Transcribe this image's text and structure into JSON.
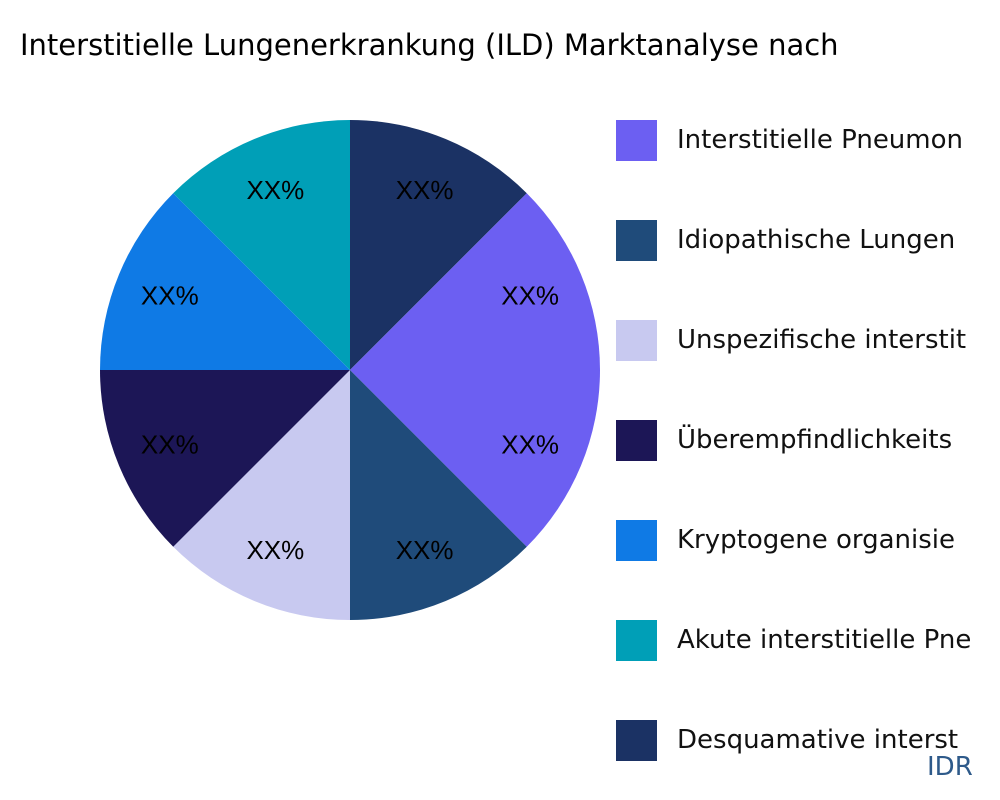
{
  "chart_data": {
    "type": "pie",
    "title": "Interstitielle Lungenerkrankung (ILD) Marktanalyse nach",
    "direction": "clockwise",
    "start": "top",
    "legend_position": "right",
    "slices": [
      {
        "label": "Desquamative interst",
        "value": 12.5,
        "color": "#1b3264",
        "text": "XX%"
      },
      {
        "label": "",
        "value": 12.5,
        "color": "#6c5ff2",
        "text": "XX%"
      },
      {
        "label": "Interstitielle Pneumon",
        "value": 12.5,
        "color": "#6c5ff2",
        "text": "XX%"
      },
      {
        "label": "Idiopathische Lungen",
        "value": 12.5,
        "color": "#1f4b7a",
        "text": "XX%"
      },
      {
        "label": "Unspezifische interstit",
        "value": 12.5,
        "color": "#c8c9f0",
        "text": "XX%"
      },
      {
        "label": "Überempfindlichkeits",
        "value": 12.5,
        "color": "#1c1656",
        "text": "XX%"
      },
      {
        "label": "Kryptogene organisie",
        "value": 12.5,
        "color": "#0f7ae5",
        "text": "XX%"
      },
      {
        "label": "Akute interstitielle Pne",
        "value": 12.5,
        "color": "#009fb7",
        "text": "XX%"
      }
    ],
    "legend": [
      {
        "label": "Interstitielle Pneumon",
        "color": "#6c5ff2"
      },
      {
        "label": "Idiopathische Lungen",
        "color": "#1f4b7a"
      },
      {
        "label": "Unspezifische interstit",
        "color": "#c8c9f0"
      },
      {
        "label": "Überempfindlichkeits",
        "color": "#1c1656"
      },
      {
        "label": "Kryptogene organisie",
        "color": "#0f7ae5"
      },
      {
        "label": "Akute interstitielle Pne",
        "color": "#009fb7"
      },
      {
        "label": "Desquamative interst",
        "color": "#1b3264"
      }
    ]
  },
  "brand": "IDR"
}
